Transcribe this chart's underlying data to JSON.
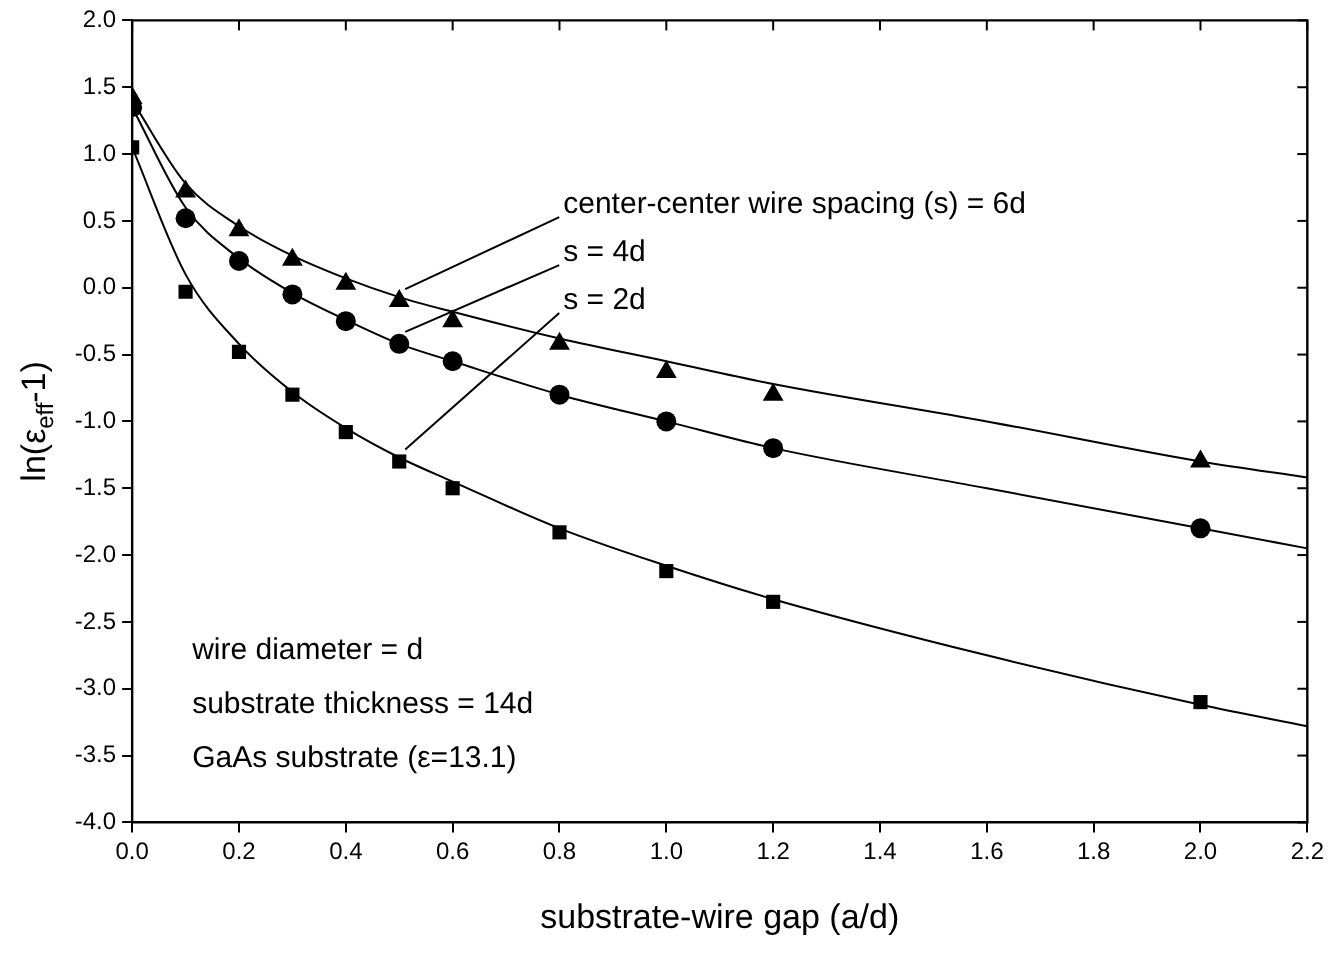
{
  "chart_data": {
    "type": "scatter",
    "xlabel": "substrate-wire gap (a/d)",
    "ylabel": "ln(ε$_{eff}$-1)",
    "xlim": [
      0,
      2.2
    ],
    "xticks": [
      {
        "value": 0,
        "label": "0.0"
      },
      0.2,
      0.4,
      0.6,
      0.8,
      {
        "value": 1,
        "label": "1.0"
      },
      1.2,
      1.4,
      1.6,
      1.8,
      {
        "value": 2,
        "label": "2.0"
      },
      2.2
    ],
    "ylim": [
      -4,
      2
    ],
    "yticks": [
      {
        "value": -4,
        "label": "-4.0"
      },
      -3.5,
      {
        "value": -3,
        "label": "-3.0"
      },
      -2.5,
      {
        "value": -2,
        "label": "-2.0"
      },
      -1.5,
      {
        "value": -1,
        "label": "-1.0"
      },
      -0.5,
      {
        "value": 0,
        "label": "0.0"
      },
      0.5,
      {
        "value": 1,
        "label": "1.0"
      },
      1.5,
      {
        "value": 2,
        "label": "2.0"
      }
    ],
    "grid": false,
    "legend": false,
    "annotations": [
      "wire diameter = d",
      "substrate thickness = 14d",
      "GaAs substrate (ε=13.1)"
    ],
    "series": [
      {
        "name": "center-center wire spacing (s) = 6d",
        "color": "#000000",
        "marker": "triangle",
        "x": [
          0,
          0.1,
          0.2,
          0.3,
          0.4,
          0.5,
          0.6,
          0.8,
          1.0,
          1.2,
          2.0
        ],
        "values": [
          1.42,
          0.72,
          0.43,
          0.21,
          0.03,
          -0.1,
          -0.25,
          -0.42,
          -0.63,
          -0.8,
          -1.3
        ]
      },
      {
        "name": "s = 4d",
        "color": "#000000",
        "marker": "circle",
        "x": [
          0,
          0.1,
          0.2,
          0.3,
          0.4,
          0.5,
          0.6,
          0.8,
          1.0,
          1.2,
          2.0
        ],
        "values": [
          1.35,
          0.52,
          0.2,
          -0.05,
          -0.25,
          -0.42,
          -0.55,
          -0.8,
          -1.0,
          -1.2,
          -1.8
        ]
      },
      {
        "name": "s = 2d",
        "color": "#000000",
        "marker": "square",
        "x": [
          0,
          0.1,
          0.2,
          0.3,
          0.4,
          0.5,
          0.6,
          0.8,
          1.0,
          1.2,
          2.0
        ],
        "values": [
          1.05,
          -0.03,
          -0.48,
          -0.8,
          -1.08,
          -1.3,
          -1.5,
          -1.83,
          -2.12,
          -2.35,
          -3.1
        ]
      },
      {
        "type": "line",
        "color": "#000000",
        "marker": "none",
        "x": [
          0,
          0.1,
          0.2,
          0.3,
          0.4,
          0.5,
          0.6,
          0.8,
          1.0,
          1.2,
          1.6,
          2.0,
          2.2
        ],
        "values": [
          1.4,
          0.78,
          0.46,
          0.24,
          0.07,
          -0.07,
          -0.18,
          -0.38,
          -0.55,
          -0.72,
          -1.0,
          -1.3,
          -1.42
        ]
      },
      {
        "type": "line",
        "color": "#000000",
        "marker": "none",
        "x": [
          0,
          0.1,
          0.2,
          0.3,
          0.4,
          0.5,
          0.6,
          0.8,
          1.0,
          1.2,
          1.6,
          2.0,
          2.2
        ],
        "values": [
          1.35,
          0.6,
          0.22,
          -0.04,
          -0.24,
          -0.42,
          -0.55,
          -0.8,
          -1.0,
          -1.2,
          -1.5,
          -1.8,
          -1.95
        ]
      },
      {
        "type": "line",
        "color": "#000000",
        "marker": "none",
        "x": [
          0,
          0.1,
          0.2,
          0.3,
          0.4,
          0.5,
          0.6,
          0.8,
          1.0,
          1.2,
          1.6,
          2.0,
          2.2
        ],
        "values": [
          1.05,
          0.1,
          -0.42,
          -0.78,
          -1.05,
          -1.27,
          -1.45,
          -1.8,
          -2.08,
          -2.33,
          -2.75,
          -3.12,
          -3.28
        ]
      }
    ]
  }
}
